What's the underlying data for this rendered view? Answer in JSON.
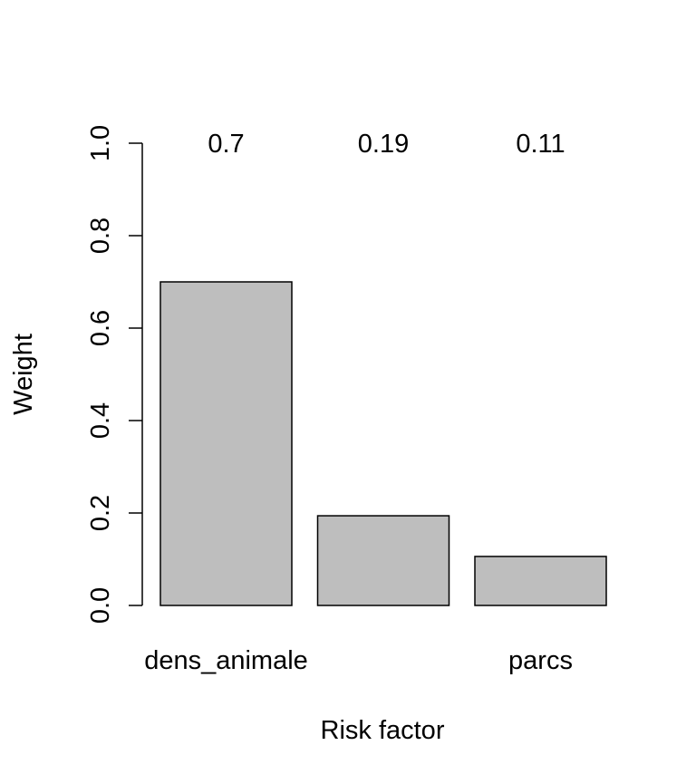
{
  "chart_data": {
    "type": "bar",
    "categories": [
      "dens_animale",
      "",
      "parcs"
    ],
    "values": [
      0.7,
      0.194,
      0.106
    ],
    "value_labels": [
      "0.7",
      "0.19",
      "0.11"
    ],
    "xlabel": "Risk factor",
    "ylabel": "Weight",
    "ylim": [
      0,
      1
    ],
    "yticks": [
      0,
      0.2,
      0.4,
      0.6,
      0.8,
      1.0
    ],
    "ytick_labels": [
      "0.0",
      "0.2",
      "0.4",
      "0.6",
      "0.8",
      "1.0"
    ],
    "bar_color": "#bebebe",
    "grid": false
  }
}
